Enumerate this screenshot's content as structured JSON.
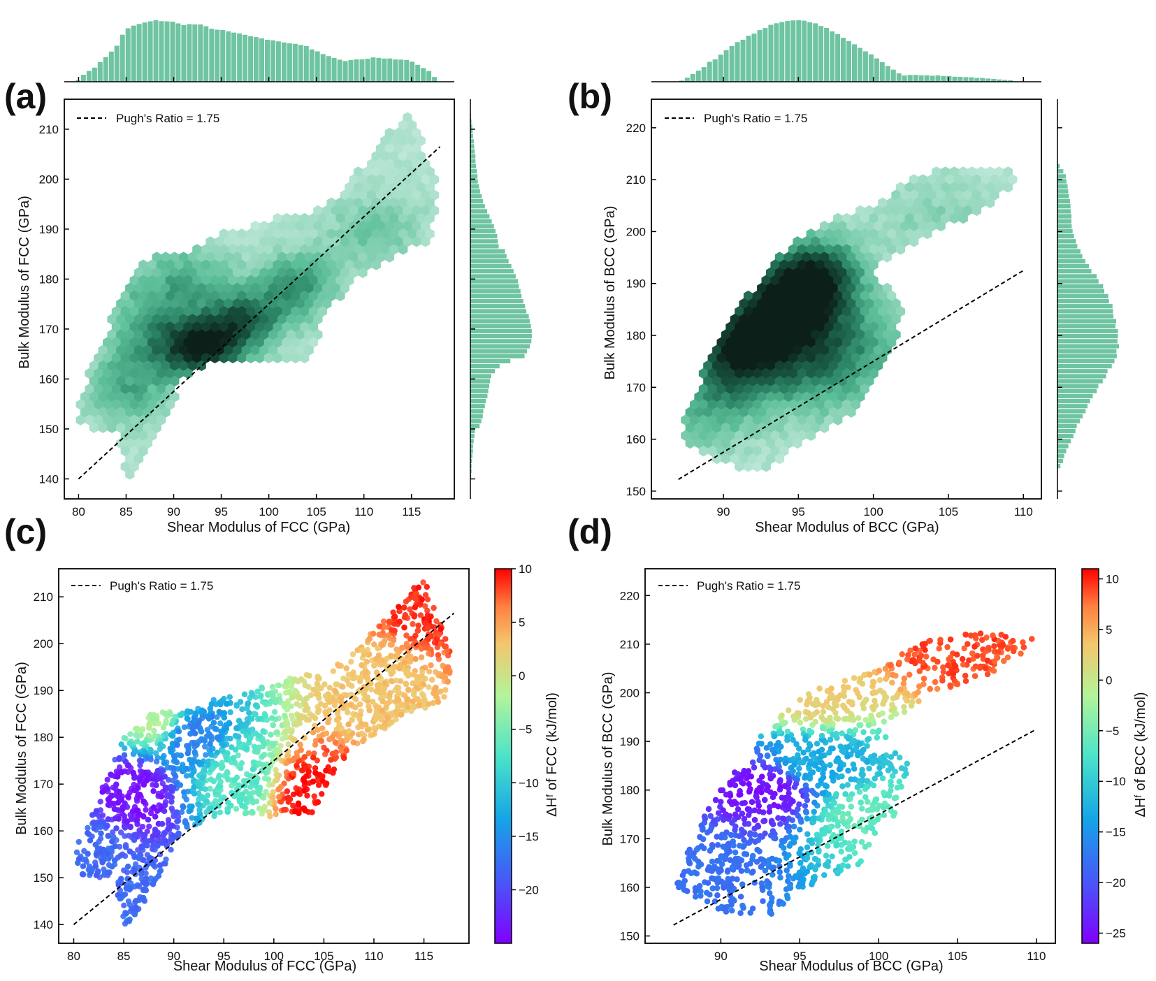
{
  "figure": {
    "panels": [
      {
        "letter": "(a)",
        "kind": "hexbin",
        "xlabel": "Shear Modulus of FCC (GPa)",
        "ylabel": "Bulk Modulus of FCC (GPa)",
        "legend": "Pugh's Ratio = 1.75"
      },
      {
        "letter": "(b)",
        "kind": "hexbin",
        "xlabel": "Shear Modulus of BCC (GPa)",
        "ylabel": "Bulk Modulus of BCC (GPa)",
        "legend": "Pugh's Ratio = 1.75"
      },
      {
        "letter": "(c)",
        "kind": "colored-scatter",
        "xlabel": "Shear Modulus of FCC (GPa)",
        "ylabel": "Bulk Modulus of FCC (GPa)",
        "legend": "Pugh's Ratio = 1.75",
        "colorbar_label": "ΔHᶠ of FCC (kJ/mol)"
      },
      {
        "letter": "(d)",
        "kind": "colored-scatter",
        "xlabel": "Shear Modulus of BCC (GPa)",
        "ylabel": "Bulk Modulus of BCC (GPa)",
        "legend": "Pugh's Ratio = 1.75",
        "colorbar_label": "ΔHᶠ of BCC (kJ/mol)"
      }
    ]
  },
  "colors": {
    "hex_light": "#cfeee2",
    "hex_mid": "#5dbf99",
    "hex_dark": "#0c1f19",
    "hist_fill": "#6fc4a1",
    "reference_line": "#000000",
    "colormap": "rainbow"
  },
  "chart_data": [
    {
      "panel": "(a)",
      "type": "hexbin",
      "xlabel": "Shear Modulus of FCC (GPa)",
      "ylabel": "Bulk Modulus of FCC (GPa)",
      "xticks": [
        80,
        85,
        90,
        95,
        100,
        105,
        110,
        115
      ],
      "yticks": [
        140,
        150,
        160,
        170,
        180,
        190,
        200,
        210
      ],
      "xlim": [
        78.5,
        119.5
      ],
      "ylim": [
        136,
        216
      ],
      "reference_line": {
        "name": "Pugh's Ratio = 1.75",
        "x": [
          80,
          118
        ],
        "y": [
          140,
          206.5
        ]
      },
      "density_centers": [
        [
          86,
          158
        ],
        [
          92,
          165
        ],
        [
          97,
          172
        ],
        [
          103,
          180
        ],
        [
          112,
          193
        ],
        [
          89,
          180
        ],
        [
          94,
          186
        ],
        [
          99,
          165
        ]
      ],
      "marginal_x_peak": 91.5,
      "marginal_y_peak": 166
    },
    {
      "panel": "(b)",
      "type": "hexbin",
      "xlabel": "Shear Modulus of BCC (GPa)",
      "ylabel": "Bulk Modulus of BCC (GPa)",
      "xticks": [
        90,
        95,
        100,
        105,
        110
      ],
      "yticks": [
        150,
        160,
        170,
        180,
        190,
        200,
        210,
        220
      ],
      "xlim": [
        85.2,
        111.2
      ],
      "ylim": [
        148.5,
        225.5
      ],
      "reference_line": {
        "name": "Pugh's Ratio = 1.75",
        "x": [
          87,
          110
        ],
        "y": [
          152.25,
          192.5
        ]
      },
      "density_centers": [
        [
          91,
          177
        ],
        [
          94,
          187
        ],
        [
          96.5,
          193
        ],
        [
          98,
          181
        ],
        [
          89,
          165
        ],
        [
          100,
          176
        ],
        [
          103,
          205
        ]
      ],
      "marginal_x_peak": 95.5,
      "marginal_y_peak": 186
    },
    {
      "panel": "(c)",
      "type": "scatter",
      "xlabel": "Shear Modulus of FCC (GPa)",
      "ylabel": "Bulk Modulus of FCC (GPa)",
      "xticks": [
        80,
        85,
        90,
        95,
        100,
        105,
        110,
        115
      ],
      "yticks": [
        140,
        150,
        160,
        170,
        180,
        190,
        200,
        210
      ],
      "xlim": [
        78.5,
        119.5
      ],
      "ylim": [
        136,
        216
      ],
      "reference_line": {
        "name": "Pugh's Ratio = 1.75",
        "x": [
          80,
          118
        ],
        "y": [
          140,
          206.5
        ]
      },
      "colorbar": {
        "label": "ΔHᶠ of FCC (kJ/mol)",
        "ticks": [
          10,
          5,
          0,
          -5,
          -10,
          -15,
          -20
        ],
        "range": [
          -25,
          10
        ]
      },
      "color_regions": [
        {
          "x": 86,
          "y": 168,
          "dH": -24
        },
        {
          "x": 82,
          "y": 155,
          "dH": -18
        },
        {
          "x": 92,
          "y": 180,
          "dH": -16
        },
        {
          "x": 88,
          "y": 185,
          "dH": -2
        },
        {
          "x": 96,
          "y": 172,
          "dH": -7
        },
        {
          "x": 104,
          "y": 168,
          "dH": 10
        },
        {
          "x": 110,
          "y": 190,
          "dH": 3
        },
        {
          "x": 115,
          "y": 210,
          "dH": 9
        }
      ]
    },
    {
      "panel": "(d)",
      "type": "scatter",
      "xlabel": "Shear Modulus of BCC (GPa)",
      "ylabel": "Bulk Modulus of BCC (GPa)",
      "xticks": [
        90,
        95,
        100,
        105,
        110
      ],
      "yticks": [
        150,
        160,
        170,
        180,
        190,
        200,
        210,
        220
      ],
      "xlim": [
        85.2,
        111.2
      ],
      "ylim": [
        148.5,
        225.5
      ],
      "reference_line": {
        "name": "Pugh's Ratio = 1.75",
        "x": [
          87,
          110
        ],
        "y": [
          152.25,
          192.5
        ]
      },
      "colorbar": {
        "label": "ΔHᶠ of BCC (kJ/mol)",
        "ticks": [
          10,
          5,
          0,
          -5,
          -10,
          -15,
          -20,
          -25
        ],
        "range": [
          -26,
          11
        ]
      },
      "color_regions": [
        {
          "x": 93,
          "y": 180,
          "dH": -25
        },
        {
          "x": 88,
          "y": 165,
          "dH": -18
        },
        {
          "x": 96,
          "y": 185,
          "dH": -13
        },
        {
          "x": 99,
          "y": 175,
          "dH": -6
        },
        {
          "x": 96,
          "y": 200,
          "dH": 3
        },
        {
          "x": 104,
          "y": 210,
          "dH": 9
        }
      ]
    }
  ]
}
